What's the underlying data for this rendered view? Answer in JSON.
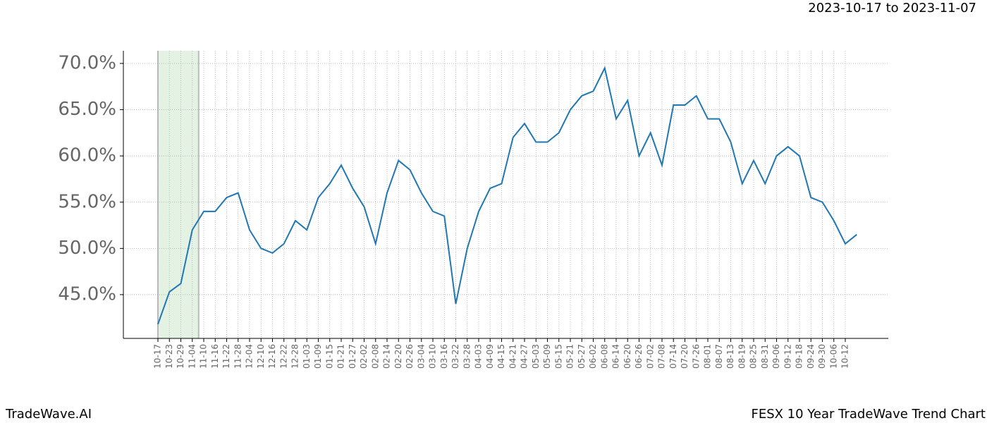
{
  "header": "2023-10-17 to 2023-11-07",
  "footer_left": "TradeWave.AI",
  "footer_right": "FESX 10 Year TradeWave Trend Chart",
  "chart_data": {
    "type": "line",
    "categories": [
      "10-17",
      "10-23",
      "10-29",
      "11-04",
      "11-10",
      "11-16",
      "11-22",
      "11-28",
      "12-04",
      "12-10",
      "12-16",
      "12-22",
      "12-28",
      "01-03",
      "01-09",
      "01-15",
      "01-21",
      "01-27",
      "02-02",
      "02-08",
      "02-14",
      "02-20",
      "02-26",
      "03-04",
      "03-10",
      "03-16",
      "03-22",
      "03-28",
      "04-03",
      "04-09",
      "04-15",
      "04-21",
      "04-27",
      "05-03",
      "05-09",
      "05-15",
      "05-21",
      "05-27",
      "06-02",
      "06-08",
      "06-14",
      "06-20",
      "06-26",
      "07-02",
      "07-08",
      "07-14",
      "07-20",
      "07-26",
      "08-01",
      "08-07",
      "08-13",
      "08-19",
      "08-25",
      "08-31",
      "09-06",
      "09-12",
      "09-18",
      "09-24",
      "09-30",
      "10-06",
      "10-12",
      null
    ],
    "series": [
      {
        "color": "#1f77b4",
        "values": [
          41.8,
          45.3,
          46.2,
          52.0,
          54.0,
          54.0,
          55.5,
          56.0,
          52.0,
          50.0,
          49.5,
          50.5,
          53.0,
          52.0,
          55.5,
          57.0,
          59.0,
          56.5,
          54.5,
          50.5,
          56.0,
          59.5,
          58.5,
          56.0,
          54.0,
          53.5,
          44.0,
          50.0,
          54.0,
          56.5,
          57.0,
          62.0,
          63.5,
          61.5,
          61.5,
          62.5,
          65.0,
          66.5,
          67.0,
          69.5,
          64.0,
          66.0,
          60.0,
          62.5,
          59.0,
          65.5,
          65.5,
          66.5,
          64.0,
          64.0,
          61.5,
          57.0,
          59.5,
          57.0,
          60.0,
          61.0,
          60.0,
          55.5,
          55.0,
          53.0,
          50.5,
          51.5
        ]
      }
    ],
    "highlight": {
      "from": "10-17",
      "to": "11-04",
      "color": "#d9ecd9"
    },
    "ylim": [
      40.27,
      71.37
    ],
    "yticks": [
      {
        "value": 45,
        "label": "45.0%"
      },
      {
        "value": 50,
        "label": "50.0%"
      },
      {
        "value": 55,
        "label": "55.0%"
      },
      {
        "value": 60,
        "label": "60.0%"
      },
      {
        "value": 65,
        "label": "65.0%"
      },
      {
        "value": 70,
        "label": "70.0%"
      }
    ],
    "grid": true
  }
}
